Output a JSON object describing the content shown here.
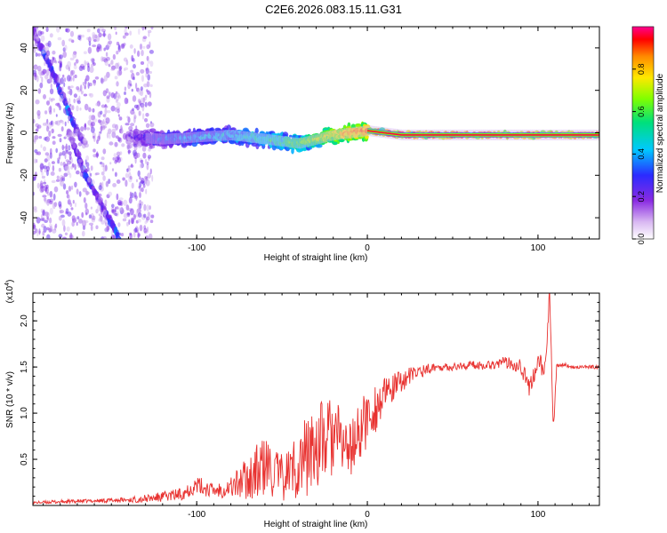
{
  "title": "C2E6.2026.083.15.11.G31",
  "colors": {
    "frame": "#000000",
    "snr_line": "#e8312f",
    "background": "#ffffff"
  },
  "colorbar": {
    "label": "Normalized spectral amplitude",
    "ticks": [
      "0.0",
      "0.2",
      "0.4",
      "0.6",
      "0.8"
    ],
    "tick_values": [
      0.0,
      0.2,
      0.4,
      0.6,
      0.8
    ],
    "range": [
      0,
      1
    ],
    "colormap": [
      "#ffffff",
      "#c9a6ee",
      "#7b24e8",
      "#2b2bff",
      "#00c8ff",
      "#00e07a",
      "#80ff00",
      "#ffe800",
      "#ff8a00",
      "#ff0000",
      "#ff0090"
    ]
  },
  "chart_data": [
    {
      "type": "heatmap",
      "xlabel": "Height of straight line (km)",
      "ylabel": "Frequency (Hz)",
      "xlim": [
        -196,
        136
      ],
      "ylim": [
        -50,
        50
      ],
      "x_ticks": [
        -100,
        0,
        100
      ],
      "x_tick_labels": [
        "-100",
        "0",
        "100"
      ],
      "y_ticks": [
        -40,
        -20,
        0,
        20,
        40
      ],
      "y_tick_labels": [
        "-40",
        "-20",
        "0",
        "20",
        "40"
      ],
      "features": [
        {
          "name": "main",
          "x": [
            -140,
            -120,
            -100,
            -80,
            -60,
            -40,
            -20,
            0,
            20,
            60,
            100,
            136
          ],
          "y": [
            -2,
            -3,
            -2,
            -1,
            -3,
            -5,
            -1,
            1,
            -1,
            -1,
            -1,
            -1
          ],
          "amplitude": [
            0.15,
            0.3,
            0.35,
            0.4,
            0.45,
            0.55,
            0.7,
            0.85,
            0.95,
            0.95,
            0.9,
            0.95
          ]
        },
        {
          "name": "diagonal-1",
          "x": [
            -196,
            -185,
            -175,
            -170,
            -165
          ],
          "y": [
            48,
            30,
            10,
            0,
            -5
          ],
          "amplitude": [
            0.2,
            0.3,
            0.35,
            0.25,
            0.15
          ]
        },
        {
          "name": "diagonal-2",
          "x": [
            -175,
            -165,
            -155,
            -145
          ],
          "y": [
            0,
            -20,
            -35,
            -50
          ],
          "amplitude": [
            0.15,
            0.3,
            0.2,
            0.35
          ]
        }
      ]
    },
    {
      "type": "line",
      "xlabel": "Height of straight line (km)",
      "ylabel": "SNR (10 * v/v)",
      "y_multiplier": "(x10",
      "y_multiplier_exp": "4",
      "y_multiplier_close": ")",
      "xlim": [
        -196,
        136
      ],
      "ylim": [
        0,
        2.3
      ],
      "x_ticks": [
        -100,
        0,
        100
      ],
      "x_tick_labels": [
        "-100",
        "0",
        "100"
      ],
      "y_ticks": [
        0.5,
        1.0,
        1.5,
        2.0
      ],
      "y_tick_labels": [
        "0.5",
        "1.0",
        "1.5",
        "2.0"
      ],
      "series": [
        {
          "x": [
            -196,
            -180,
            -160,
            -140,
            -125,
            -110,
            -100,
            -90,
            -80,
            -70,
            -60,
            -50,
            -40,
            -30,
            -20,
            -10,
            0,
            10,
            20,
            30,
            40,
            50,
            60,
            70,
            80,
            90,
            95,
            100,
            104,
            107,
            109,
            111,
            115,
            120,
            130,
            136
          ],
          "y": [
            0.03,
            0.04,
            0.05,
            0.06,
            0.08,
            0.12,
            0.22,
            0.16,
            0.2,
            0.3,
            0.42,
            0.3,
            0.45,
            0.65,
            0.75,
            0.6,
            0.95,
            1.18,
            1.35,
            1.45,
            1.5,
            1.5,
            1.52,
            1.52,
            1.55,
            1.53,
            1.25,
            1.58,
            1.45,
            2.25,
            0.78,
            1.5,
            1.53,
            1.5,
            1.5,
            1.5
          ],
          "noise": [
            0.015,
            0.02,
            0.02,
            0.03,
            0.05,
            0.07,
            0.1,
            0.08,
            0.12,
            0.25,
            0.35,
            0.25,
            0.4,
            0.5,
            0.45,
            0.3,
            0.35,
            0.2,
            0.12,
            0.08,
            0.04,
            0.04,
            0.05,
            0.05,
            0.06,
            0.1,
            0.1,
            0.1,
            0.12,
            0.2,
            0.1,
            0.04,
            0.02,
            0.02,
            0.02,
            0.02
          ]
        }
      ]
    }
  ]
}
